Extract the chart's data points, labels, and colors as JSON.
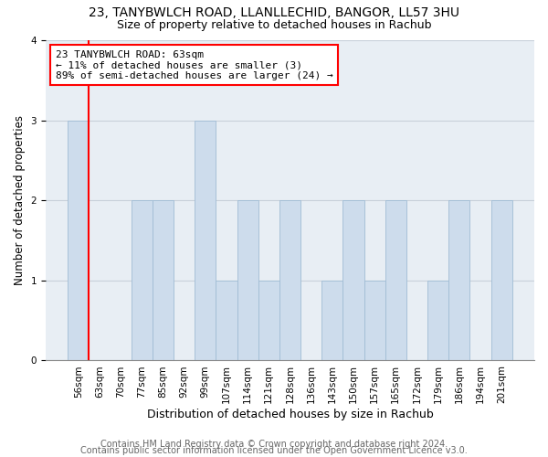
{
  "title": "23, TANYBWLCH ROAD, LLANLLECHID, BANGOR, LL57 3HU",
  "subtitle": "Size of property relative to detached houses in Rachub",
  "xlabel": "Distribution of detached houses by size in Rachub",
  "ylabel": "Number of detached properties",
  "categories": [
    "56sqm",
    "63sqm",
    "70sqm",
    "77sqm",
    "85sqm",
    "92sqm",
    "99sqm",
    "107sqm",
    "114sqm",
    "121sqm",
    "128sqm",
    "136sqm",
    "143sqm",
    "150sqm",
    "157sqm",
    "165sqm",
    "172sqm",
    "179sqm",
    "186sqm",
    "194sqm",
    "201sqm"
  ],
  "values": [
    3,
    0,
    0,
    2,
    2,
    0,
    3,
    1,
    2,
    1,
    2,
    0,
    1,
    2,
    1,
    2,
    0,
    1,
    2,
    0,
    2
  ],
  "bar_color": "#cddcec",
  "bar_edge_color": "#a0bcd4",
  "annotation_text": "23 TANYBWLCH ROAD: 63sqm\n← 11% of detached houses are smaller (3)\n89% of semi-detached houses are larger (24) →",
  "annotation_box_color": "white",
  "annotation_box_edge_color": "red",
  "vline_color": "red",
  "vline_x_index": 1,
  "ylim": [
    0,
    4
  ],
  "yticks": [
    0,
    1,
    2,
    3,
    4
  ],
  "footer_line1": "Contains HM Land Registry data © Crown copyright and database right 2024.",
  "footer_line2": "Contains public sector information licensed under the Open Government Licence v3.0.",
  "plot_bg_color": "#e8eef4",
  "grid_color": "#c8d0da",
  "title_fontsize": 10,
  "subtitle_fontsize": 9,
  "xlabel_fontsize": 9,
  "ylabel_fontsize": 8.5,
  "tick_fontsize": 7.5,
  "annotation_fontsize": 8,
  "footer_fontsize": 7
}
